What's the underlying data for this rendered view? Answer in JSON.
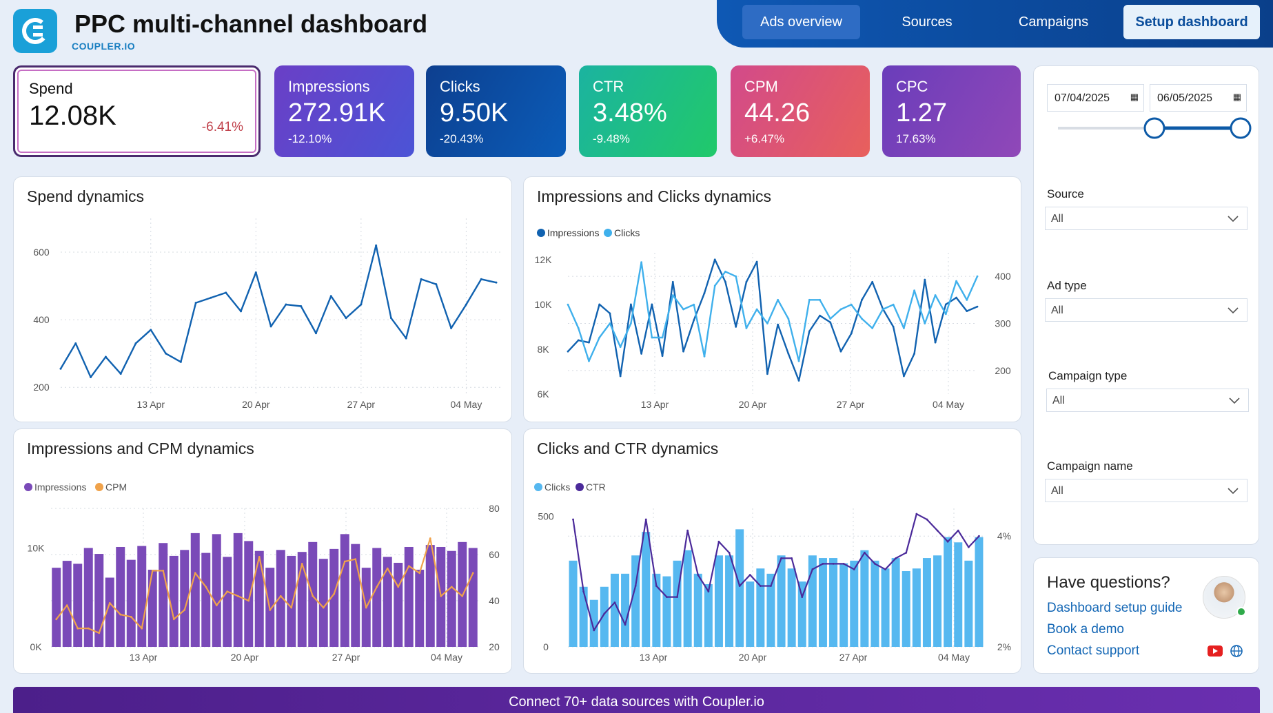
{
  "header": {
    "title": "PPC multi-channel dashboard",
    "brand": "COUPLER.IO",
    "nav": [
      "Ads overview",
      "Sources",
      "Campaigns"
    ],
    "setup_label": "Setup dashboard"
  },
  "kpis": [
    {
      "label": "Spend",
      "value": "12.08K",
      "change": "-6.41%"
    },
    {
      "label": "Impressions",
      "value": "272.91K",
      "change": "-12.10%"
    },
    {
      "label": "Clicks",
      "value": "9.50K",
      "change": "-20.43%"
    },
    {
      "label": "CTR",
      "value": "3.48%",
      "change": "-9.48%"
    },
    {
      "label": "CPM",
      "value": "44.26",
      "change": "+6.47%"
    },
    {
      "label": "CPC",
      "value": "1.27",
      "change": "17.63%"
    }
  ],
  "filters": {
    "date_from": "07/04/2025",
    "date_to": "06/05/2025",
    "source_label": "Source",
    "source_value": "All",
    "adtype_label": "Ad type",
    "adtype_value": "All",
    "camptype_label": "Campaign type",
    "camptype_value": "All",
    "campname_label": "Campaign name",
    "campname_value": "All"
  },
  "help": {
    "title": "Have questions?",
    "links": [
      "Dashboard setup guide",
      "Book a demo",
      "Contact support"
    ]
  },
  "banner": "Connect 70+ data sources with Coupler.io",
  "chart_data": [
    {
      "type": "line",
      "title": "Spend dynamics",
      "x_ticks": [
        "13 Apr",
        "20 Apr",
        "27 Apr",
        "04 May"
      ],
      "y_ticks": [
        "200",
        "400",
        "600"
      ],
      "ylim": [
        180,
        700
      ],
      "series": [
        {
          "name": "Spend",
          "color": "#1162b0",
          "values": [
            255,
            330,
            230,
            290,
            240,
            330,
            370,
            300,
            275,
            450,
            465,
            480,
            425,
            540,
            380,
            445,
            440,
            360,
            470,
            405,
            445,
            620,
            405,
            345,
            520,
            505,
            375,
            445,
            520,
            510
          ]
        }
      ]
    },
    {
      "type": "line",
      "title": "Impressions and Clicks dynamics",
      "legend": [
        "Impressions",
        "Clicks"
      ],
      "x_ticks": [
        "13 Apr",
        "20 Apr",
        "27 Apr",
        "04 May"
      ],
      "y_ticks_left": [
        "6K",
        "8K",
        "10K",
        "12K"
      ],
      "y_ticks_right": [
        "200",
        "300",
        "400"
      ],
      "ylim_left": [
        6000,
        12300
      ],
      "ylim_right": [
        150,
        450
      ],
      "series": [
        {
          "name": "Impressions",
          "color": "#1162b0",
          "axis": "left",
          "values": [
            7900,
            8400,
            8300,
            10000,
            9600,
            6800,
            10000,
            7800,
            10000,
            7700,
            11000,
            7900,
            9300,
            10500,
            12000,
            11000,
            9000,
            11000,
            11900,
            6900,
            9100,
            7800,
            6600,
            8800,
            9500,
            9200,
            7900,
            8700,
            10200,
            11000,
            9800,
            9000,
            6800,
            7800,
            11100,
            8300,
            10000,
            10300,
            9700,
            9900
          ]
        },
        {
          "name": "Clicks",
          "color": "#3fb0ec",
          "axis": "right",
          "values": [
            340,
            290,
            220,
            270,
            300,
            250,
            300,
            430,
            270,
            270,
            360,
            330,
            340,
            230,
            380,
            410,
            400,
            290,
            330,
            300,
            350,
            310,
            220,
            350,
            350,
            310,
            330,
            340,
            310,
            290,
            330,
            340,
            290,
            370,
            300,
            360,
            320,
            390,
            350,
            400
          ]
        }
      ]
    },
    {
      "type": "bar",
      "title": "Impressions and CPM dynamics",
      "legend": [
        "Impressions",
        "CPM"
      ],
      "x_ticks": [
        "13 Apr",
        "20 Apr",
        "27 Apr",
        "04 May"
      ],
      "y_ticks_left": [
        "0K",
        "10K"
      ],
      "y_ticks_right": [
        "20",
        "40",
        "60",
        "80"
      ],
      "ylim_left": [
        0,
        14000
      ],
      "ylim_right": [
        20,
        80
      ],
      "series": [
        {
          "name": "Impressions",
          "color": "#7a4ab8",
          "axis": "left",
          "values": [
            8000,
            8700,
            8400,
            10000,
            9400,
            7000,
            10100,
            8800,
            10200,
            7800,
            10500,
            9200,
            9800,
            11500,
            9500,
            11400,
            9100,
            11500,
            10700,
            9700,
            8000,
            9800,
            9200,
            9600,
            10600,
            8900,
            9900,
            11400,
            10400,
            8000,
            10000,
            9100,
            8500,
            10100,
            7800,
            10300,
            10100,
            9700,
            10600,
            10000
          ]
        },
        {
          "name": "CPM",
          "color": "#f0a24a",
          "axis": "right",
          "values": [
            32,
            38,
            28,
            28,
            26,
            39,
            34,
            33,
            28,
            53,
            53,
            32,
            36,
            52,
            46,
            38,
            44,
            42,
            40,
            59,
            36,
            42,
            37,
            56,
            42,
            37,
            43,
            57,
            58,
            37,
            46,
            54,
            46,
            55,
            52,
            67,
            42,
            46,
            42,
            52
          ]
        }
      ]
    },
    {
      "type": "bar",
      "title": "Clicks and CTR dynamics",
      "legend": [
        "Clicks",
        "CTR"
      ],
      "x_ticks": [
        "13 Apr",
        "20 Apr",
        "27 Apr",
        "04 May"
      ],
      "y_ticks_left": [
        "0",
        "500"
      ],
      "y_ticks_right": [
        "2%",
        "4%"
      ],
      "ylim_left": [
        0,
        530
      ],
      "ylim_right": [
        2,
        4.5
      ],
      "series": [
        {
          "name": "Clicks",
          "color": "#56b8f0",
          "axis": "left",
          "values": [
            330,
            230,
            180,
            230,
            280,
            280,
            350,
            440,
            280,
            270,
            330,
            370,
            280,
            240,
            350,
            350,
            450,
            250,
            300,
            280,
            350,
            300,
            250,
            350,
            340,
            340,
            320,
            330,
            370,
            330,
            300,
            340,
            290,
            300,
            340,
            350,
            420,
            400,
            330,
            420
          ]
        },
        {
          "name": "CTR",
          "color": "#4b2a9a",
          "axis": "right",
          "values": [
            4.3,
            3.0,
            2.3,
            2.6,
            2.8,
            2.4,
            3.1,
            4.3,
            3.1,
            2.9,
            2.9,
            4.1,
            3.3,
            3.0,
            3.9,
            3.7,
            3.1,
            3.3,
            3.1,
            3.1,
            3.6,
            3.6,
            2.9,
            3.4,
            3.5,
            3.5,
            3.5,
            3.4,
            3.7,
            3.5,
            3.4,
            3.6,
            3.7,
            4.4,
            4.3,
            4.1,
            3.9,
            4.1,
            3.8,
            4.0
          ]
        }
      ]
    }
  ]
}
